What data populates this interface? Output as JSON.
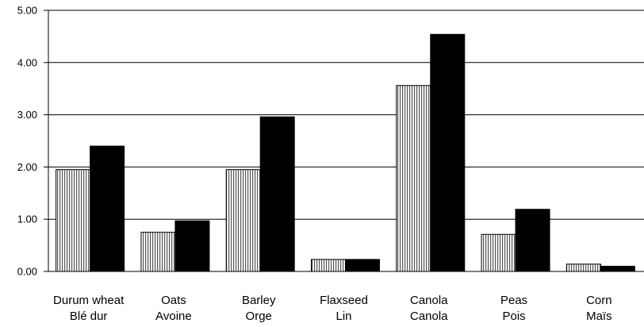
{
  "chart_data": {
    "type": "bar",
    "categories": [
      [
        "Durum wheat",
        "Blé dur"
      ],
      [
        "Oats",
        "Avoine"
      ],
      [
        "Barley",
        "Orge"
      ],
      [
        "Flaxseed",
        "Lin"
      ],
      [
        "Canola",
        "Canola"
      ],
      [
        "Peas",
        "Pois"
      ],
      [
        "Corn",
        "Maïs"
      ]
    ],
    "series": [
      {
        "values": [
          1.95,
          0.75,
          1.95,
          0.23,
          3.56,
          0.71,
          0.14
        ],
        "fill": "hatched",
        "color": "#000000"
      },
      {
        "values": [
          2.4,
          0.97,
          2.96,
          0.23,
          4.54,
          1.19,
          0.1
        ],
        "fill": "solid",
        "color": "#000000"
      }
    ],
    "yticks": [
      "0.00",
      "1.00",
      "2.00",
      "3.00",
      "4.00",
      "5.00"
    ],
    "ylim": [
      0,
      5
    ],
    "grid": true,
    "title": "",
    "xlabel": "",
    "ylabel": ""
  }
}
